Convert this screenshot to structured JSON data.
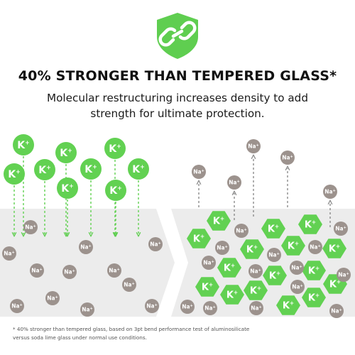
{
  "headline": "40% STRONGER THAN TEMPERED GLASS*",
  "subhead_line1": "Molecular restructuring increases density to add",
  "subhead_line2": "strength for ultimate protection.",
  "footnote_line1": "* 40% stronger than tempered glass, based on 3pt bend performance test of aluminosilicate",
  "footnote_line2": "versus soda lime glass under normal use conditions.",
  "ions": {
    "potassium": "K",
    "sodium": "Na",
    "charge": "+"
  },
  "icons": {
    "badge": "shield-chain-link-icon"
  },
  "colors": {
    "potassium_green": "#62d152",
    "sodium_taupe": "#9c928d",
    "glass_gray": "#ececec",
    "badge_green": "#5fce50"
  }
}
